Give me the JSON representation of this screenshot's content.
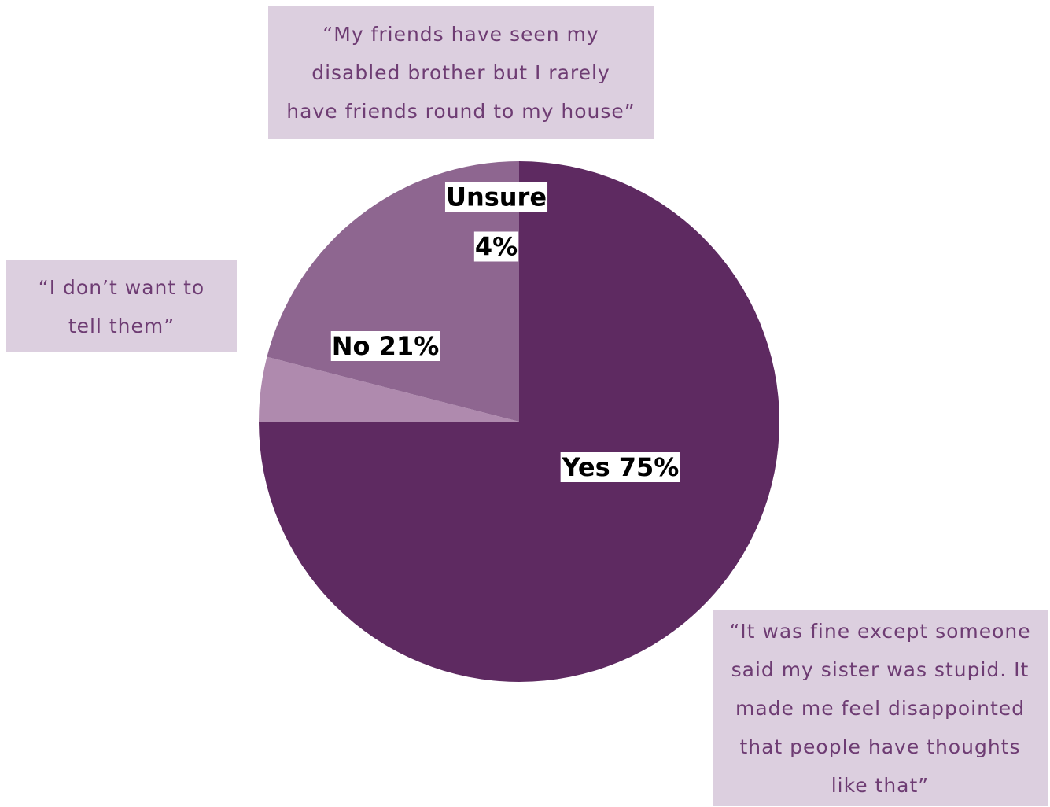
{
  "chart_data": {
    "type": "pie",
    "slices": [
      {
        "label": "Yes 75%",
        "value": 75,
        "color": "#5e2a61"
      },
      {
        "label": "Unsure 4%",
        "label_lines": [
          "Unsure",
          "4%"
        ],
        "value": 4,
        "color": "#af8aae"
      },
      {
        "label": "No 21%",
        "value": 21,
        "color": "#8e6690"
      }
    ],
    "label_background": "#ffffff"
  },
  "quotes": {
    "top": {
      "lines": [
        "“My friends have seen my",
        "disabled brother but I rarely",
        "have friends round to my house”"
      ]
    },
    "left": {
      "lines": [
        "“I don’t want to",
        "tell them”"
      ]
    },
    "bottom": {
      "lines": [
        "“It was fine except someone",
        "said my sister was stupid. It",
        "made me feel disappointed",
        "that people have thoughts",
        "like that”"
      ]
    }
  },
  "colors": {
    "quote_background": "#dccfdf",
    "quote_text": "#6e3c73"
  }
}
